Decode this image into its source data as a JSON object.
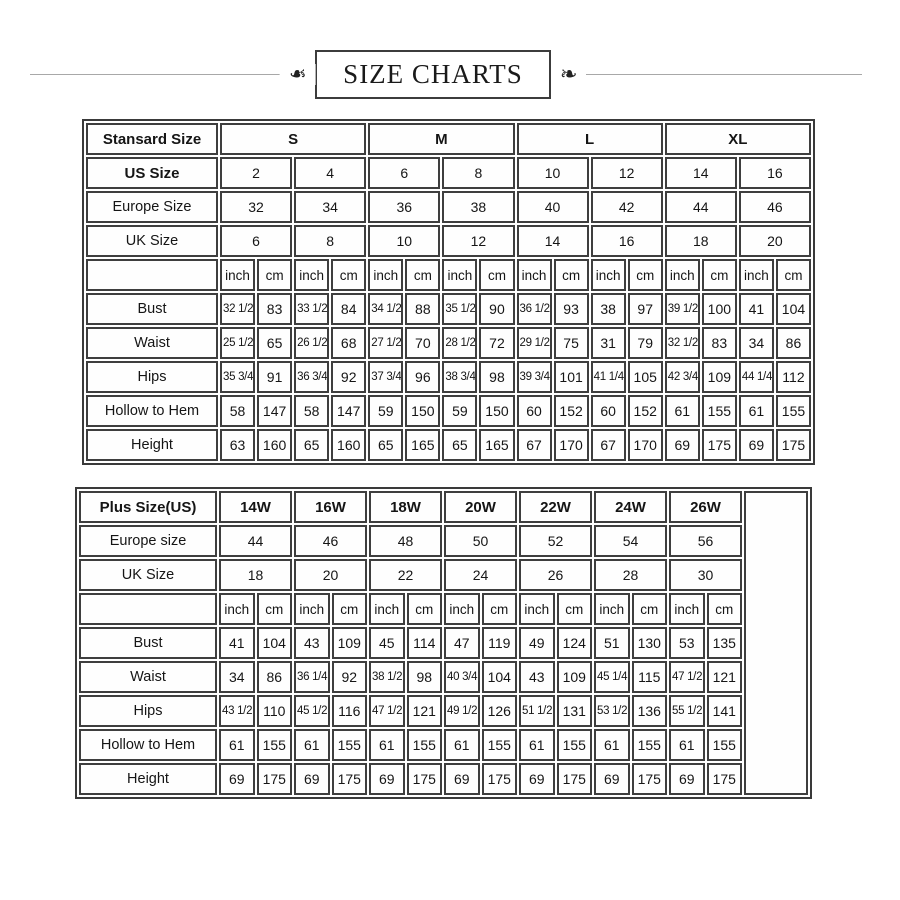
{
  "page": {
    "title": "SIZE CHARTS"
  },
  "decor": {
    "ornament": "❧"
  },
  "colors": {
    "border": "#3a3a3a",
    "text": "#151515",
    "background": "#ffffff"
  },
  "standard_table": {
    "corner_label": "Stansard Size",
    "groups": [
      "S",
      "M",
      "L",
      "XL"
    ],
    "size_rows": [
      {
        "label": "US Size",
        "bold": true,
        "values": [
          "2",
          "4",
          "6",
          "8",
          "10",
          "12",
          "14",
          "16"
        ]
      },
      {
        "label": "Europe Size",
        "bold": false,
        "values": [
          "32",
          "34",
          "36",
          "38",
          "40",
          "42",
          "44",
          "46"
        ]
      },
      {
        "label": "UK Size",
        "bold": false,
        "values": [
          "6",
          "8",
          "10",
          "12",
          "14",
          "16",
          "18",
          "20"
        ]
      }
    ],
    "units": [
      "inch",
      "cm"
    ],
    "measure_rows": [
      {
        "label": "Bust",
        "values": [
          "32 1/2",
          "83",
          "33 1/2",
          "84",
          "34 1/2",
          "88",
          "35 1/2",
          "90",
          "36 1/2",
          "93",
          "38",
          "97",
          "39 1/2",
          "100",
          "41",
          "104"
        ]
      },
      {
        "label": "Waist",
        "values": [
          "25 1/2",
          "65",
          "26 1/2",
          "68",
          "27 1/2",
          "70",
          "28 1/2",
          "72",
          "29 1/2",
          "75",
          "31",
          "79",
          "32 1/2",
          "83",
          "34",
          "86"
        ]
      },
      {
        "label": "Hips",
        "values": [
          "35 3/4",
          "91",
          "36 3/4",
          "92",
          "37 3/4",
          "96",
          "38 3/4",
          "98",
          "39 3/4",
          "101",
          "41 1/4",
          "105",
          "42 3/4",
          "109",
          "44 1/4",
          "112"
        ]
      },
      {
        "label": "Hollow to Hem",
        "values": [
          "58",
          "147",
          "58",
          "147",
          "59",
          "150",
          "59",
          "150",
          "60",
          "152",
          "60",
          "152",
          "61",
          "155",
          "61",
          "155"
        ]
      },
      {
        "label": "Height",
        "values": [
          "63",
          "160",
          "65",
          "160",
          "65",
          "165",
          "65",
          "165",
          "67",
          "170",
          "67",
          "170",
          "69",
          "175",
          "69",
          "175"
        ]
      }
    ]
  },
  "plus_table": {
    "corner_label": "Plus Size(US)",
    "groups": [
      "14W",
      "16W",
      "18W",
      "20W",
      "22W",
      "24W",
      "26W"
    ],
    "size_rows": [
      {
        "label": "Europe size",
        "bold": false,
        "values": [
          "44",
          "46",
          "48",
          "50",
          "52",
          "54",
          "56"
        ]
      },
      {
        "label": "UK Size",
        "bold": false,
        "values": [
          "18",
          "20",
          "22",
          "24",
          "26",
          "28",
          "30"
        ]
      }
    ],
    "units": [
      "inch",
      "cm"
    ],
    "measure_rows": [
      {
        "label": "Bust",
        "values": [
          "41",
          "104",
          "43",
          "109",
          "45",
          "114",
          "47",
          "119",
          "49",
          "124",
          "51",
          "130",
          "53",
          "135"
        ]
      },
      {
        "label": "Waist",
        "values": [
          "34",
          "86",
          "36 1/4",
          "92",
          "38 1/2",
          "98",
          "40 3/4",
          "104",
          "43",
          "109",
          "45 1/4",
          "115",
          "47 1/2",
          "121"
        ]
      },
      {
        "label": "Hips",
        "values": [
          "43 1/2",
          "110",
          "45 1/2",
          "116",
          "47 1/2",
          "121",
          "49 1/2",
          "126",
          "51 1/2",
          "131",
          "53 1/2",
          "136",
          "55 1/2",
          "141"
        ]
      },
      {
        "label": "Hollow to Hem",
        "values": [
          "61",
          "155",
          "61",
          "155",
          "61",
          "155",
          "61",
          "155",
          "61",
          "155",
          "61",
          "155",
          "61",
          "155"
        ]
      },
      {
        "label": "Height",
        "values": [
          "69",
          "175",
          "69",
          "175",
          "69",
          "175",
          "69",
          "175",
          "69",
          "175",
          "69",
          "175",
          "69",
          "175"
        ]
      }
    ]
  }
}
